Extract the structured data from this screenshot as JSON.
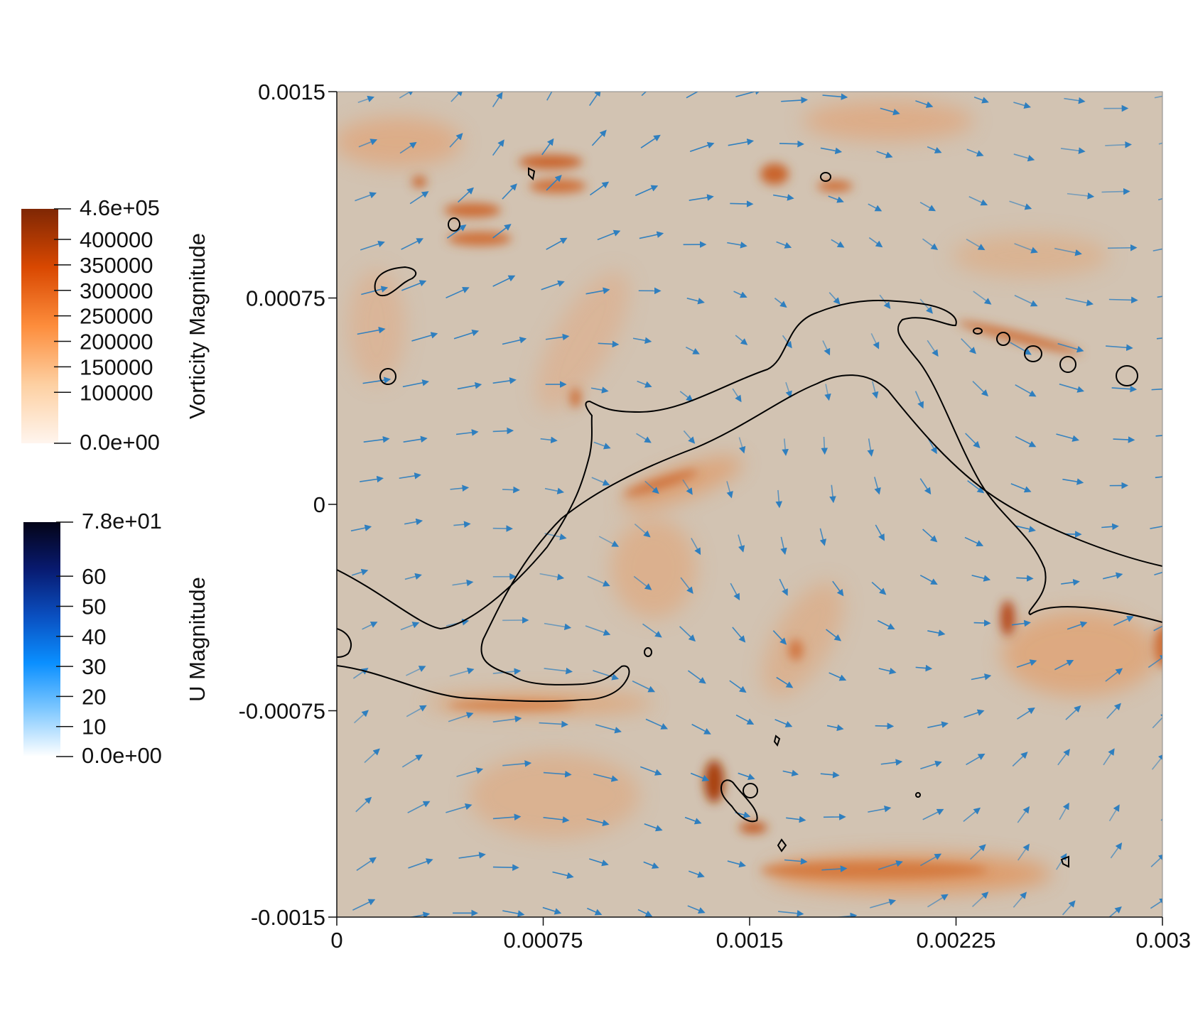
{
  "chart_data": {
    "type": "heatmap",
    "description_kind": "vorticity field with velocity glyphs and interface contour",
    "x_ticks": [
      "0",
      "0.00075",
      "0.0015",
      "0.00225",
      "0.003"
    ],
    "y_ticks": [
      "0.0015",
      "0.00075",
      "0",
      "-0.00075",
      "-0.0015"
    ],
    "xlim": [
      0,
      0.003
    ],
    "ylim": [
      -0.0015,
      0.0015
    ],
    "grid": false,
    "colorbars": [
      {
        "title": "Vorticity Magnitude",
        "range": [
          0,
          460000
        ],
        "max_label": "4.6e+05",
        "min_label": "0.0e+00",
        "tick_labels": [
          "400000",
          "350000",
          "300000",
          "250000",
          "200000",
          "150000",
          "100000"
        ],
        "tick_values": [
          400000,
          350000,
          300000,
          250000,
          200000,
          150000,
          100000
        ],
        "colors": [
          "#fff5ee",
          "#fdd0a2",
          "#fd8d3c",
          "#d94801",
          "#7f2704"
        ]
      },
      {
        "title": "U Magnitude",
        "range": [
          0,
          78
        ],
        "max_label": "7.8e+01",
        "min_label": "0.0e+00",
        "tick_labels": [
          "60",
          "50",
          "40",
          "30",
          "20",
          "10"
        ],
        "tick_values": [
          60,
          50,
          40,
          30,
          20,
          10
        ],
        "colors": [
          "#ffffff",
          "#7fc8ff",
          "#0a8fff",
          "#0a4fc0",
          "#081a70",
          "#040417"
        ]
      }
    ],
    "colors": {
      "background_field": "#d2c3b2",
      "vorticity_high": "#c8581e",
      "vorticity_mid": "#e39a62",
      "vector": "#2f7fbf",
      "contour": "#000000"
    }
  }
}
